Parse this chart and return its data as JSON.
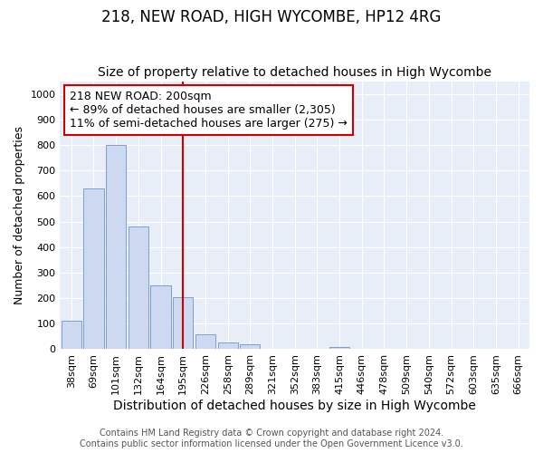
{
  "title": "218, NEW ROAD, HIGH WYCOMBE, HP12 4RG",
  "subtitle": "Size of property relative to detached houses in High Wycombe",
  "xlabel": "Distribution of detached houses by size in High Wycombe",
  "ylabel": "Number of detached properties",
  "categories": [
    "38sqm",
    "69sqm",
    "101sqm",
    "132sqm",
    "164sqm",
    "195sqm",
    "226sqm",
    "258sqm",
    "289sqm",
    "321sqm",
    "352sqm",
    "383sqm",
    "415sqm",
    "446sqm",
    "478sqm",
    "509sqm",
    "540sqm",
    "572sqm",
    "603sqm",
    "635sqm",
    "666sqm"
  ],
  "values": [
    110,
    630,
    800,
    480,
    250,
    205,
    60,
    28,
    18,
    0,
    0,
    0,
    10,
    0,
    0,
    0,
    0,
    0,
    0,
    0,
    0
  ],
  "bar_color": "#ccd9f0",
  "bar_edge_color": "#7aa0cc",
  "highlight_index": 5,
  "highlight_line_color": "#cc0000",
  "annotation_text": "218 NEW ROAD: 200sqm\n← 89% of detached houses are smaller (2,305)\n11% of semi-detached houses are larger (275) →",
  "annotation_box_color": "#ffffff",
  "annotation_box_edge_color": "#cc0000",
  "ylim": [
    0,
    1050
  ],
  "yticks": [
    0,
    100,
    200,
    300,
    400,
    500,
    600,
    700,
    800,
    900,
    1000
  ],
  "footnote": "Contains HM Land Registry data © Crown copyright and database right 2024.\nContains public sector information licensed under the Open Government Licence v3.0.",
  "background_color": "#e8eef8",
  "grid_color": "#ffffff",
  "title_fontsize": 12,
  "subtitle_fontsize": 10,
  "xlabel_fontsize": 10,
  "ylabel_fontsize": 9,
  "tick_fontsize": 8,
  "footnote_fontsize": 7,
  "annotation_fontsize": 9
}
